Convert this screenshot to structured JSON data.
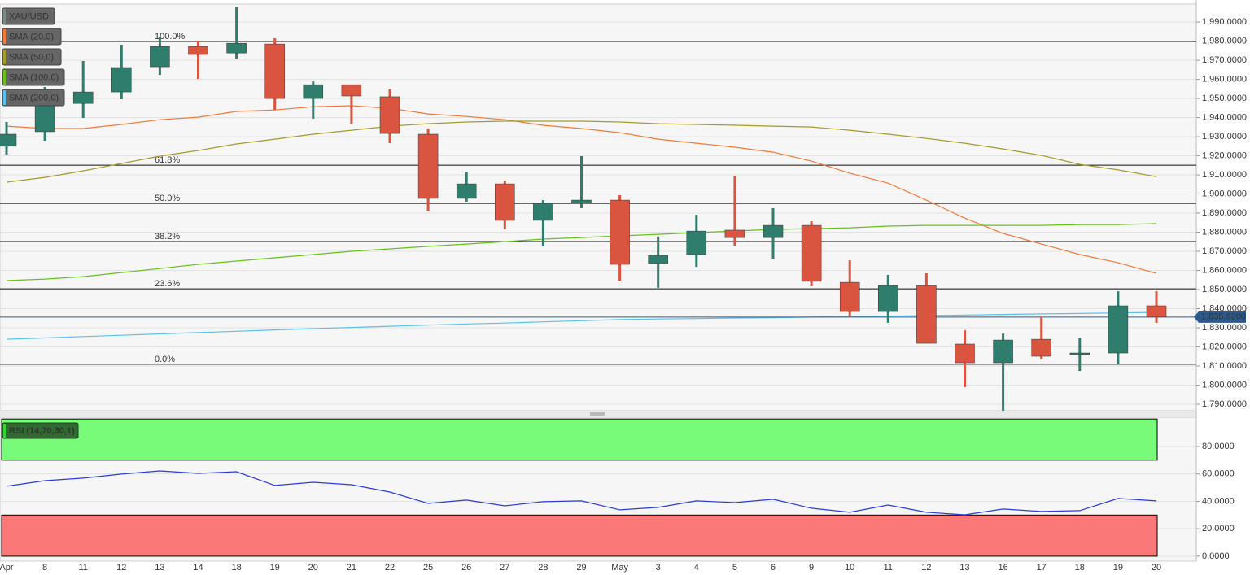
{
  "chart_data": [
    {
      "type": "candlestick",
      "name": "XAU/USD",
      "badge_color": "#7a8a86",
      "open": [
        1925,
        1932.6,
        1947.4,
        1953.4,
        1966.6,
        1977.2,
        1973.8,
        1978.5,
        1950,
        1957.2,
        1950.9,
        1931.3,
        1897.7,
        1905.3,
        1886.2,
        1895.1,
        1896.8,
        1863.6,
        1868.3,
        1881.1,
        1877.2,
        1883.6,
        1853.8,
        1838.5,
        1852.1,
        1821.5,
        1811.7,
        1824,
        1816,
        1816.8,
        1841.5
      ],
      "high": [
        1937.7,
        1956,
        1969.6,
        1978.1,
        1982.3,
        1980.2,
        1998.1,
        1981.5,
        1958.9,
        1957.2,
        1955.1,
        1934.3,
        1911.3,
        1907,
        1896.8,
        1919.8,
        1899.4,
        1877.7,
        1889.1,
        1909.6,
        1892.6,
        1885.7,
        1865.3,
        1857.7,
        1858.5,
        1828.7,
        1827,
        1835.5,
        1824.5,
        1849.1,
        1849.1
      ],
      "low": [
        1920.6,
        1927.9,
        1939.8,
        1949.6,
        1962.3,
        1960.2,
        1970.9,
        1944,
        1939.4,
        1936.8,
        1926.6,
        1891.3,
        1896,
        1881.5,
        1872.6,
        1892.6,
        1854.7,
        1850.9,
        1861.9,
        1873,
        1866.2,
        1851.7,
        1836,
        1832.6,
        1821.9,
        1799,
        1786,
        1813.4,
        1807.4,
        1811.3,
        1832.6
      ],
      "close": [
        1931.3,
        1948.3,
        1953.4,
        1966.2,
        1977.2,
        1973,
        1978.9,
        1950,
        1957.2,
        1951.3,
        1931.7,
        1897.7,
        1905.3,
        1886.2,
        1895.1,
        1896.8,
        1863.2,
        1867.9,
        1880.6,
        1877.2,
        1883.6,
        1854.3,
        1838.5,
        1852.1,
        1821.9,
        1811.7,
        1823.6,
        1815.1,
        1816.8,
        1841.5,
        1835.62
      ],
      "up_color": "#2f7d6d",
      "down_color": "#d9553f",
      "series": [
        {
          "name": "SMA (20,0)",
          "color": "#f07a3a",
          "values": [
            1935.5,
            1934.3,
            1934.3,
            1936.4,
            1938.9,
            1940.2,
            1943.2,
            1944,
            1945.7,
            1946.2,
            1944.9,
            1941.9,
            1940.6,
            1938.9,
            1936,
            1934.3,
            1932.1,
            1928.7,
            1926.6,
            1924.5,
            1921.9,
            1917.2,
            1910.9,
            1905.7,
            1896.8,
            1887.4,
            1879.4,
            1873.8,
            1868.3,
            1864,
            1858.5
          ]
        },
        {
          "name": "SMA (50,0)",
          "color": "#a59a2a",
          "values": [
            1906.2,
            1908.7,
            1912.1,
            1916,
            1919.8,
            1922.8,
            1926.2,
            1928.7,
            1931.3,
            1933.4,
            1935.5,
            1936.8,
            1937.7,
            1938.1,
            1938.1,
            1938.1,
            1937.7,
            1936.8,
            1936.4,
            1936,
            1935.5,
            1935.1,
            1933.4,
            1931.3,
            1929.1,
            1926.6,
            1923.6,
            1920.2,
            1915.5,
            1912.6,
            1909.1
          ]
        },
        {
          "name": "SMA (100,0)",
          "color": "#66c21a",
          "values": [
            1854.7,
            1855.5,
            1856.8,
            1858.9,
            1861,
            1863.2,
            1864.9,
            1866.6,
            1868.3,
            1870,
            1871.3,
            1872.6,
            1873.8,
            1875.1,
            1876.4,
            1877.2,
            1878.1,
            1878.9,
            1879.8,
            1880.6,
            1881.5,
            1881.9,
            1882.3,
            1883.2,
            1883.6,
            1883.6,
            1883.6,
            1883.6,
            1884,
            1884,
            1884.5
          ]
        },
        {
          "name": "SMA (200,0)",
          "color": "#5bc0eb",
          "values": [
            1824,
            1824.7,
            1825.4,
            1826.1,
            1826.8,
            1827.5,
            1828.2,
            1828.9,
            1829.6,
            1830.2,
            1830.8,
            1831.4,
            1832,
            1832.5,
            1833.1,
            1833.7,
            1834.3,
            1834.6,
            1834.8,
            1835.1,
            1835.3,
            1835.6,
            1835.9,
            1836.1,
            1836.4,
            1836.7,
            1837,
            1837.3,
            1837.5,
            1837.8,
            1838.1
          ]
        }
      ],
      "levels": [
        {
          "label": "100.0%",
          "value": 1979.8
        },
        {
          "label": "61.8%",
          "value": 1915.1
        },
        {
          "label": "50.0%",
          "value": 1895.1
        },
        {
          "label": "38.2%",
          "value": 1875.1
        },
        {
          "label": "23.6%",
          "value": 1850.4
        },
        {
          "label": "0.0%",
          "value": 1810.9
        }
      ],
      "last_price": {
        "value": 1835.62,
        "label": "1,835.6200"
      },
      "last_price_color": "#2c5a8c",
      "ylim": [
        1786.6,
        1999.4
      ],
      "yticks": [
        {
          "value": 1790,
          "label": "1,790.0000"
        },
        {
          "value": 1800,
          "label": "1,800.0000"
        },
        {
          "value": 1810,
          "label": "1,810.0000"
        },
        {
          "value": 1820,
          "label": "1,820.0000"
        },
        {
          "value": 1830,
          "label": "1,830.0000"
        },
        {
          "value": 1840,
          "label": "1,840.0000"
        },
        {
          "value": 1850,
          "label": "1,850.0000"
        },
        {
          "value": 1860,
          "label": "1,860.0000"
        },
        {
          "value": 1870,
          "label": "1,870.0000"
        },
        {
          "value": 1880,
          "label": "1,880.0000"
        },
        {
          "value": 1890,
          "label": "1,890.0000"
        },
        {
          "value": 1900,
          "label": "1,900.0000"
        },
        {
          "value": 1910,
          "label": "1,910.0000"
        },
        {
          "value": 1920,
          "label": "1,920.0000"
        },
        {
          "value": 1930,
          "label": "1,930.0000"
        },
        {
          "value": 1940,
          "label": "1,940.0000"
        },
        {
          "value": 1950,
          "label": "1,950.0000"
        },
        {
          "value": 1960,
          "label": "1,960.0000"
        },
        {
          "value": 1970,
          "label": "1,970.0000"
        },
        {
          "value": 1980,
          "label": "1,980.0000"
        },
        {
          "value": 1990,
          "label": "1,990.0000"
        }
      ],
      "grid": true
    },
    {
      "type": "line",
      "categories": [
        "Apr",
        "8",
        "11",
        "12",
        "13",
        "14",
        "18",
        "19",
        "20",
        "21",
        "22",
        "25",
        "26",
        "27",
        "28",
        "29",
        "May",
        "3",
        "4",
        "5",
        "6",
        "9",
        "10",
        "11",
        "12",
        "13",
        "16",
        "17",
        "18",
        "19",
        "20"
      ],
      "series": [
        {
          "name": "RSI (14,70,30,1)",
          "color": "#2a3bd6",
          "badge_color": "#2f6a2f",
          "values": [
            51,
            55.1,
            56.9,
            59.9,
            62.2,
            60.4,
            61.6,
            51.6,
            53.9,
            52.1,
            46.8,
            38.5,
            40.9,
            36.7,
            39.7,
            40.3,
            33.8,
            35.6,
            40.3,
            39.1,
            41.5,
            35,
            32,
            37.3,
            32,
            30.2,
            34.4,
            32.6,
            33.2,
            42.1,
            40.3
          ]
        }
      ],
      "zones": [
        {
          "from": 70,
          "to": 100,
          "color": "#78fb78"
        },
        {
          "from": 0,
          "to": 30,
          "color": "#fb7878"
        }
      ],
      "ylim": [
        -3.6,
        101.3
      ],
      "yticks": [
        {
          "value": 0,
          "label": "0.0000"
        },
        {
          "value": 20,
          "label": "20.0000"
        },
        {
          "value": 40,
          "label": "40.0000"
        },
        {
          "value": 60,
          "label": "60.0000"
        },
        {
          "value": 80,
          "label": "80.0000"
        }
      ],
      "grid": true
    }
  ]
}
